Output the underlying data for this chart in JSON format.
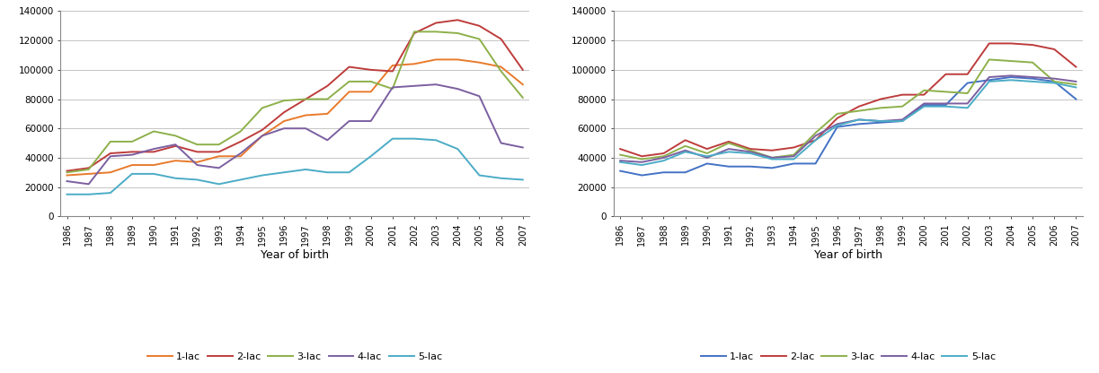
{
  "years": [
    1986,
    1987,
    1988,
    1989,
    1990,
    1991,
    1992,
    1993,
    1994,
    1995,
    1996,
    1997,
    1998,
    1999,
    2000,
    2001,
    2002,
    2003,
    2004,
    2005,
    2006,
    2007
  ],
  "left": {
    "lac1": [
      28000,
      29000,
      30000,
      35000,
      35000,
      38000,
      37000,
      41000,
      41000,
      55000,
      65000,
      69000,
      70000,
      85000,
      85000,
      103000,
      104000,
      107000,
      107000,
      105000,
      102000,
      90000
    ],
    "lac2": [
      31000,
      33000,
      43000,
      44000,
      44000,
      48000,
      44000,
      44000,
      51000,
      59000,
      71000,
      80000,
      89000,
      102000,
      100000,
      99000,
      125000,
      132000,
      134000,
      130000,
      121000,
      100000
    ],
    "lac3": [
      30000,
      32000,
      51000,
      51000,
      58000,
      55000,
      49000,
      49000,
      58000,
      74000,
      79000,
      80000,
      80000,
      92000,
      92000,
      87000,
      126000,
      126000,
      125000,
      121000,
      99000,
      81000
    ],
    "lac4": [
      24000,
      22000,
      41000,
      42000,
      46000,
      49000,
      35000,
      33000,
      43000,
      55000,
      60000,
      60000,
      52000,
      65000,
      65000,
      88000,
      89000,
      90000,
      87000,
      82000,
      50000,
      47000
    ],
    "lac5": [
      15000,
      15000,
      16000,
      29000,
      29000,
      26000,
      25000,
      22000,
      25000,
      28000,
      30000,
      32000,
      30000,
      30000,
      41000,
      53000,
      53000,
      52000,
      46000,
      28000,
      26000,
      25000
    ]
  },
  "right": {
    "lac1": [
      31000,
      28000,
      30000,
      30000,
      36000,
      34000,
      34000,
      33000,
      36000,
      36000,
      61000,
      63000,
      64000,
      65000,
      76000,
      76000,
      91000,
      93000,
      95000,
      94000,
      92000,
      80000
    ],
    "lac2": [
      46000,
      41000,
      43000,
      52000,
      46000,
      51000,
      46000,
      45000,
      47000,
      52000,
      67000,
      75000,
      80000,
      83000,
      83000,
      97000,
      97000,
      118000,
      118000,
      117000,
      114000,
      102000
    ],
    "lac3": [
      42000,
      39000,
      41000,
      48000,
      43000,
      50000,
      45000,
      40000,
      42000,
      57000,
      70000,
      72000,
      74000,
      75000,
      86000,
      85000,
      84000,
      107000,
      106000,
      105000,
      92000,
      90000
    ],
    "lac4": [
      38000,
      37000,
      40000,
      45000,
      40000,
      46000,
      44000,
      40000,
      41000,
      55000,
      63000,
      66000,
      65000,
      66000,
      77000,
      77000,
      77000,
      95000,
      96000,
      95000,
      94000,
      92000
    ],
    "lac5": [
      37000,
      35000,
      38000,
      44000,
      41000,
      44000,
      43000,
      39000,
      39000,
      52000,
      62000,
      66000,
      65000,
      65000,
      75000,
      75000,
      74000,
      92000,
      93000,
      92000,
      91000,
      88000
    ]
  },
  "colors_left": {
    "lac1": "#E87A2B",
    "lac2": "#BE3C3C",
    "lac3": "#8DB04A",
    "lac4": "#7B5FA0",
    "lac5": "#4BACC6"
  },
  "colors_right": {
    "lac1": "#4472C4",
    "lac2": "#BE3C3C",
    "lac3": "#8DB04A",
    "lac4": "#7B5FA0",
    "lac5": "#4BACC6"
  },
  "lacs": [
    "lac1",
    "lac2",
    "lac3",
    "lac4",
    "lac5"
  ],
  "labels": [
    "1-lac",
    "2-lac",
    "3-lac",
    "4-lac",
    "5-lac"
  ],
  "xlabel": "Year of birth",
  "ylim": [
    0,
    140000
  ],
  "yticks": [
    0,
    20000,
    40000,
    60000,
    80000,
    100000,
    120000,
    140000
  ]
}
